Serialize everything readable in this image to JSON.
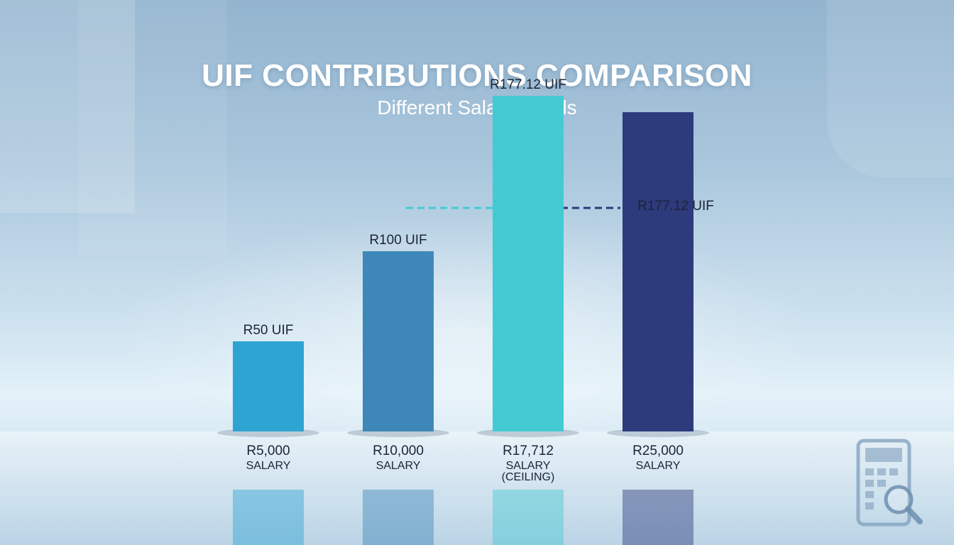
{
  "title": "UIF CONTRIBUTIONS COMPARISON",
  "subtitle": "Different Salary Levels",
  "colors": {
    "bar_1": "#2ea4d3",
    "bar_2": "#3d88b8",
    "bar_3": "#44cad3",
    "bar_4": "#2d3a7c",
    "cap_line_left": "#44cad3",
    "cap_line_right": "#2d3a7c",
    "label_text": "#1d2436"
  },
  "icons": [
    "calculator-magnifier-icon"
  ],
  "chart_data": {
    "type": "bar",
    "title": "UIF CONTRIBUTIONS COMPARISON",
    "subtitle": "Different Salary Levels",
    "categories": [
      "R5,000",
      "R10,000",
      "R17,712",
      "R25,000"
    ],
    "category_sublabels": [
      "SALARY",
      "SALARY",
      "SALARY (CEILING)",
      "SALARY"
    ],
    "values": [
      50,
      100,
      177.12,
      177.12
    ],
    "data_labels": [
      "R50 UIF",
      "R100 UIF",
      "R177.12 UIF",
      "R177.12 UIF"
    ],
    "reference_line": {
      "value": 177.12,
      "style": "dashed"
    },
    "xlabel": "",
    "ylabel": "",
    "grid": false,
    "legend": "none"
  }
}
